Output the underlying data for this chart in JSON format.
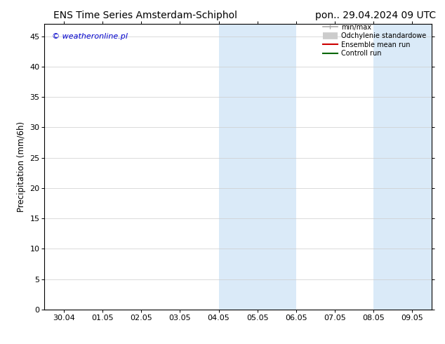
{
  "title_left": "ENS Time Series Amsterdam-Schiphol",
  "title_right": "pon.. 29.04.2024 09 UTC",
  "ylabel": "Precipitation (mm/6h)",
  "watermark": "© weatheronline.pl",
  "watermark_color": "#0000cc",
  "background_color": "#ffffff",
  "plot_bg_color": "#ffffff",
  "x_tick_labels": [
    "30.04",
    "01.05",
    "02.05",
    "03.05",
    "04.05",
    "05.05",
    "06.05",
    "07.05",
    "08.05",
    "09.05"
  ],
  "x_tick_positions": [
    0,
    1,
    2,
    3,
    4,
    5,
    6,
    7,
    8,
    9
  ],
  "ylim": [
    0,
    47
  ],
  "yticks": [
    0,
    5,
    10,
    15,
    20,
    25,
    30,
    35,
    40,
    45
  ],
  "shaded_regions": [
    {
      "xstart": 4.0,
      "xend": 6.0,
      "color": "#daeaf8"
    },
    {
      "xstart": 8.0,
      "xend": 9.5,
      "color": "#daeaf8"
    }
  ],
  "legend_entries": [
    {
      "label": "min/max",
      "color": "#aaaaaa",
      "lw": 1.2,
      "style": "line_with_cap"
    },
    {
      "label": "Odchylenie standardowe",
      "color": "#cccccc",
      "lw": 7,
      "style": "thick"
    },
    {
      "label": "Ensemble mean run",
      "color": "#cc0000",
      "lw": 1.5,
      "style": "line"
    },
    {
      "label": "Controll run",
      "color": "#006600",
      "lw": 1.5,
      "style": "line"
    }
  ],
  "grid_color": "#cccccc",
  "tick_color": "#000000",
  "title_fontsize": 10,
  "label_fontsize": 8.5,
  "tick_fontsize": 8
}
